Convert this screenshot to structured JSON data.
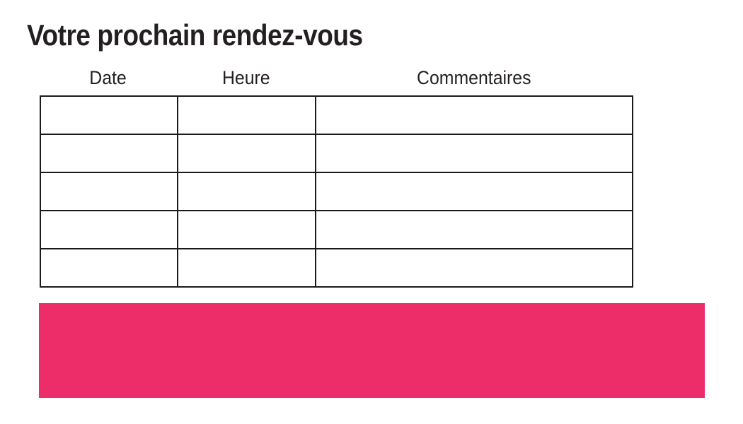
{
  "title": "Votre prochain rendez-vous",
  "table": {
    "headers": [
      "Date",
      "Heure",
      "Commentaires"
    ],
    "rows": [
      [
        "",
        "",
        ""
      ],
      [
        "",
        "",
        ""
      ],
      [
        "",
        "",
        ""
      ],
      [
        "",
        "",
        ""
      ],
      [
        "",
        "",
        ""
      ]
    ]
  },
  "banner": {
    "color": "#ED2D69"
  },
  "colors": {
    "text": "#231F20",
    "table_border": "#1A1A1A",
    "background": "#FFFFFF"
  }
}
